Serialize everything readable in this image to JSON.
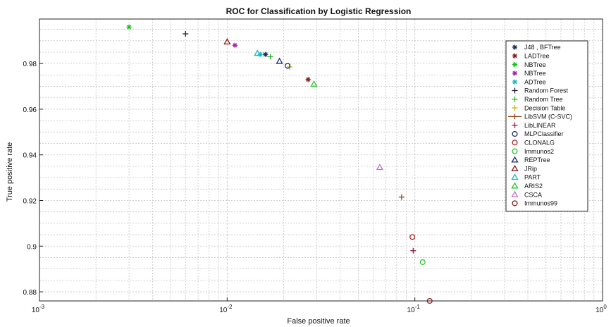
{
  "chart_data": {
    "type": "scatter",
    "title": "ROC for Classification by Logistic Regression",
    "xlabel": "False positive rate",
    "ylabel": "True positive rate",
    "x_scale": "log",
    "xlim": [
      0.001,
      1
    ],
    "ylim": [
      0.876,
      0.9995
    ],
    "grid": true,
    "legend_position": "right",
    "x_tick_labels": [
      {
        "value": 0.001,
        "base": "10",
        "exp": "-3"
      },
      {
        "value": 0.01,
        "base": "10",
        "exp": "-2"
      },
      {
        "value": 0.1,
        "base": "10",
        "exp": "-1"
      },
      {
        "value": 1,
        "base": "10",
        "exp": "0"
      }
    ],
    "y_ticks": [
      0.88,
      0.9,
      0.92,
      0.94,
      0.96,
      0.98
    ],
    "y_tick_labels": [
      "0.88",
      "0.9",
      "0.92",
      "0.94",
      "0.96",
      "0.98"
    ],
    "series": [
      {
        "name": "J48 , BFTree",
        "marker": "asterisk",
        "color": "#1a2a5a",
        "x": 0.016,
        "y": 0.984
      },
      {
        "name": "LADTree",
        "marker": "asterisk",
        "color": "#8b1a1a",
        "x": 0.027,
        "y": 0.973
      },
      {
        "name": "NBTree",
        "marker": "asterisk",
        "color": "#1fbf1f",
        "x": 0.003,
        "y": 0.996
      },
      {
        "name": "NBTree",
        "marker": "asterisk",
        "color": "#a020a0",
        "x": 0.011,
        "y": 0.988
      },
      {
        "name": "ADTree",
        "marker": "asterisk",
        "color": "#19b8c0",
        "x": 0.015,
        "y": 0.984
      },
      {
        "name": "Random Forest",
        "marker": "plus",
        "color": "#1a1a3a",
        "x": 0.006,
        "y": 0.993
      },
      {
        "name": "Random Tree",
        "marker": "plus",
        "color": "#2ab82a",
        "x": 0.017,
        "y": 0.983
      },
      {
        "name": "Decision Table",
        "marker": "plus",
        "color": "#c8b400",
        "x": 0.0215,
        "y": 0.9785
      },
      {
        "name": "LibSVM (C-SVC)",
        "marker": "plus",
        "color": "#8a4a1a",
        "x": 0.085,
        "y": 0.9215
      },
      {
        "name": "LibLINEAR",
        "marker": "plus",
        "color": "#8b1a3a",
        "x": 0.098,
        "y": 0.898
      },
      {
        "name": "MLPClassifier",
        "marker": "circle",
        "color": "#1a2a6a",
        "x": 0.021,
        "y": 0.979
      },
      {
        "name": "CLONALG",
        "marker": "circle",
        "color": "#b02020",
        "x": 0.097,
        "y": 0.904
      },
      {
        "name": "Immunos2",
        "marker": "circle",
        "color": "#2ac82a",
        "x": 0.11,
        "y": 0.893
      },
      {
        "name": "REPTree",
        "marker": "triangle",
        "color": "#1a2a7a",
        "x": 0.019,
        "y": 0.981
      },
      {
        "name": "JRip",
        "marker": "triangle",
        "color": "#8b1a1a",
        "x": 0.01,
        "y": 0.9895
      },
      {
        "name": "PART",
        "marker": "triangle",
        "color": "#19b8c0",
        "x": 0.0145,
        "y": 0.9845
      },
      {
        "name": "ARIS2",
        "marker": "triangle",
        "color": "#2ac82a",
        "x": 0.029,
        "y": 0.971
      },
      {
        "name": "CSCA",
        "marker": "triangle",
        "color": "#c070d8",
        "x": 0.065,
        "y": 0.9345
      },
      {
        "name": "Immunos99",
        "marker": "circle",
        "color": "#8b1a1a",
        "x": 0.12,
        "y": 0.876
      }
    ]
  }
}
